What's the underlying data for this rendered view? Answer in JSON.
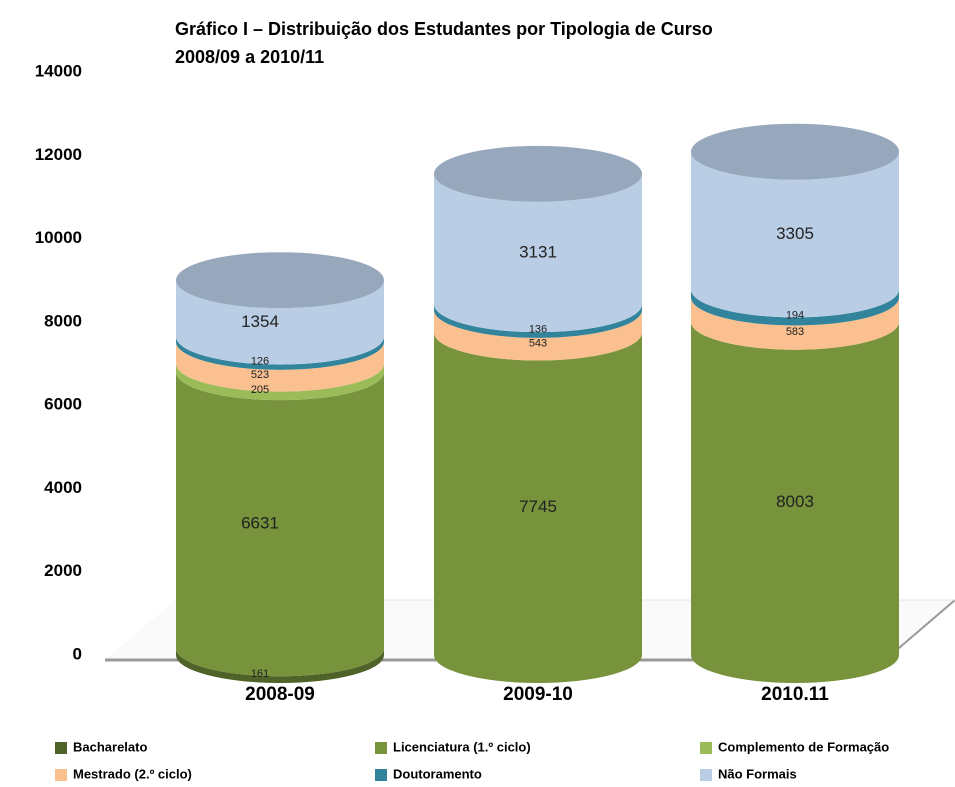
{
  "chart_data": {
    "type": "cylinder_stacked",
    "title": "Gráfico I – Distribuição dos Estudantes por Tipologia de Curso",
    "subtitle": "2008/09 a 2010/11",
    "categories": [
      "2008-09",
      "2009-10",
      "2010.11"
    ],
    "series": [
      {
        "name": "Bacharelato",
        "color": "#4f6228",
        "values": [
          161,
          null,
          null
        ]
      },
      {
        "name": "Licenciatura (1.º ciclo)",
        "color": "#77933c",
        "values": [
          6631,
          7745,
          8003
        ]
      },
      {
        "name": "Complemento de Formação",
        "color": "#9bbb59",
        "values": [
          205,
          null,
          null
        ]
      },
      {
        "name": "Mestrado (2.º ciclo)",
        "color": "#fac090",
        "values": [
          523,
          543,
          583
        ]
      },
      {
        "name": "Doutoramento",
        "color": "#31849b",
        "values": [
          126,
          136,
          194
        ]
      },
      {
        "name": "Não Formais",
        "color": "#b9cde5",
        "values": [
          1354,
          3131,
          3305
        ]
      }
    ],
    "ylim": [
      0,
      14000
    ],
    "yticks": [
      0,
      2000,
      4000,
      6000,
      8000,
      10000,
      12000,
      14000
    ],
    "legend": "bottom"
  }
}
